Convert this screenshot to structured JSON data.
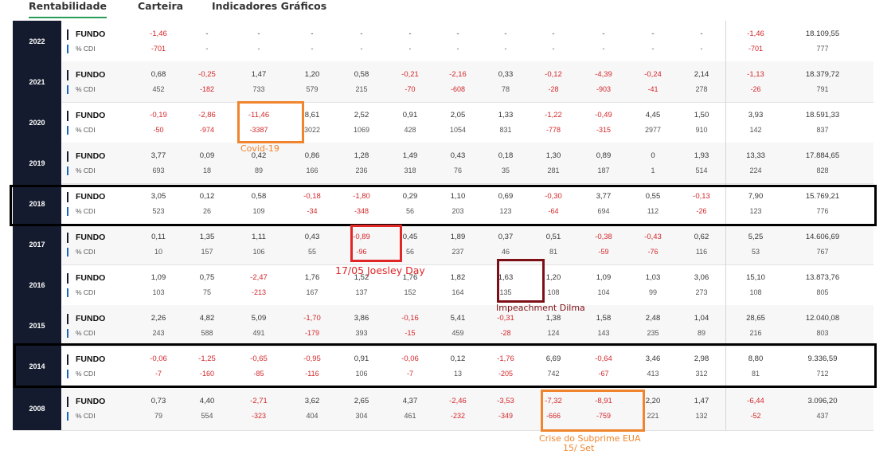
{
  "tabs": [
    {
      "label": "Rentabilidade",
      "active": true
    },
    {
      "label": "Carteira",
      "active": false
    },
    {
      "label": "Indicadores Gráficos",
      "active": false
    }
  ],
  "labels": {
    "fundo": "FUNDO",
    "cdi": "% CDI"
  },
  "colors": {
    "year_bg": "#151b2f",
    "negative": "#d3282b",
    "tab_underline": "#2a9d5c",
    "orange": "#f0852d",
    "red": "#e02626",
    "maroon": "#7d1017",
    "black": "#000000"
  },
  "rows": [
    {
      "year": "2022",
      "fundo": [
        "-1,46",
        "-",
        "-",
        "-",
        "-",
        "-",
        "-",
        "-",
        "-",
        "-",
        "-",
        "-",
        "-1,46",
        "18.109,55"
      ],
      "cdi": [
        "-701",
        "-",
        "-",
        "-",
        "-",
        "-",
        "-",
        "-",
        "-",
        "-",
        "-",
        "-",
        "-701",
        "777"
      ]
    },
    {
      "year": "2021",
      "fundo": [
        "0,68",
        "-0,25",
        "1,47",
        "1,20",
        "0,58",
        "-0,21",
        "-2,16",
        "0,33",
        "-0,12",
        "-4,39",
        "-0,24",
        "2,14",
        "-1,13",
        "18.379,72"
      ],
      "cdi": [
        "452",
        "-182",
        "733",
        "579",
        "215",
        "-70",
        "-608",
        "78",
        "-28",
        "-903",
        "-41",
        "278",
        "-26",
        "791"
      ]
    },
    {
      "year": "2020",
      "fundo": [
        "-0,19",
        "-2,86",
        "-11,46",
        "8,61",
        "2,52",
        "0,91",
        "2,05",
        "1,33",
        "-1,22",
        "-0,49",
        "4,45",
        "1,50",
        "3,93",
        "18.591,33"
      ],
      "cdi": [
        "-50",
        "-974",
        "-3387",
        "3022",
        "1069",
        "428",
        "1054",
        "831",
        "-778",
        "-315",
        "2977",
        "910",
        "142",
        "837"
      ]
    },
    {
      "year": "2019",
      "fundo": [
        "3,77",
        "0,09",
        "0,42",
        "0,86",
        "1,28",
        "1,49",
        "0,43",
        "0,18",
        "1,30",
        "0,89",
        "0",
        "1,93",
        "13,33",
        "17.884,65"
      ],
      "cdi": [
        "693",
        "18",
        "89",
        "166",
        "236",
        "318",
        "76",
        "35",
        "281",
        "187",
        "1",
        "514",
        "224",
        "828"
      ]
    },
    {
      "year": "2018",
      "fundo": [
        "3,05",
        "0,12",
        "0,58",
        "-0,18",
        "-1,80",
        "0,29",
        "1,10",
        "0,69",
        "-0,30",
        "3,77",
        "0,55",
        "-0,13",
        "7,90",
        "15.769,21"
      ],
      "cdi": [
        "523",
        "26",
        "109",
        "-34",
        "-348",
        "56",
        "203",
        "123",
        "-64",
        "694",
        "112",
        "-26",
        "123",
        "776"
      ]
    },
    {
      "year": "2017",
      "fundo": [
        "0,11",
        "1,35",
        "1,11",
        "0,43",
        "-0,89",
        "0,45",
        "1,89",
        "0,37",
        "0,51",
        "-0,38",
        "-0,43",
        "0,62",
        "5,25",
        "14.606,69"
      ],
      "cdi": [
        "10",
        "157",
        "106",
        "55",
        "-96",
        "56",
        "237",
        "46",
        "81",
        "-59",
        "-76",
        "116",
        "53",
        "767"
      ]
    },
    {
      "year": "2016",
      "fundo": [
        "1,09",
        "0,75",
        "-2,47",
        "1,76",
        "1,52",
        "1,76",
        "1,82",
        "1,63",
        "1,20",
        "1,09",
        "1,03",
        "3,06",
        "15,10",
        "13.873,76"
      ],
      "cdi": [
        "103",
        "75",
        "-213",
        "167",
        "137",
        "152",
        "164",
        "135",
        "108",
        "104",
        "99",
        "273",
        "108",
        "805"
      ]
    },
    {
      "year": "2015",
      "fundo": [
        "2,26",
        "4,82",
        "5,09",
        "-1,70",
        "3,86",
        "-0,16",
        "5,41",
        "-0,31",
        "1,38",
        "1,58",
        "2,48",
        "1,04",
        "28,65",
        "12.040,08"
      ],
      "cdi": [
        "243",
        "588",
        "491",
        "-179",
        "393",
        "-15",
        "459",
        "-28",
        "124",
        "143",
        "235",
        "89",
        "216",
        "803"
      ]
    },
    {
      "year": "2014",
      "fundo": [
        "-0,06",
        "-1,25",
        "-0,65",
        "-0,95",
        "0,91",
        "-0,06",
        "0,12",
        "-1,76",
        "6,69",
        "-0,64",
        "3,46",
        "2,98",
        "8,80",
        "9.336,59"
      ],
      "cdi": [
        "-7",
        "-160",
        "-85",
        "-116",
        "106",
        "-7",
        "13",
        "-205",
        "742",
        "-67",
        "413",
        "312",
        "81",
        "712"
      ]
    },
    {
      "year": "2008",
      "fundo": [
        "0,73",
        "4,40",
        "-2,71",
        "3,62",
        "2,65",
        "4,37",
        "-2,46",
        "-3,53",
        "-7,32",
        "-8,91",
        "2,20",
        "1,47",
        "-6,44",
        "3.096,20"
      ],
      "cdi": [
        "79",
        "554",
        "-323",
        "404",
        "304",
        "461",
        "-232",
        "-349",
        "-666",
        "-759",
        "221",
        "132",
        "-52",
        "437"
      ]
    }
  ],
  "annotations": [
    {
      "name": "covid-19",
      "text": "Covid-19",
      "color": "#f0852d"
    },
    {
      "name": "joesley-day",
      "text": "17/05 Joesley Day",
      "color": "#e02626"
    },
    {
      "name": "impeachment-dilma",
      "text": "Impeachment Dilma",
      "color": "#7d1017"
    },
    {
      "name": "crise-subprime",
      "lines": [
        "Crise do Subprime EUA",
        "15/ Set"
      ],
      "color": "#f0852d"
    }
  ]
}
